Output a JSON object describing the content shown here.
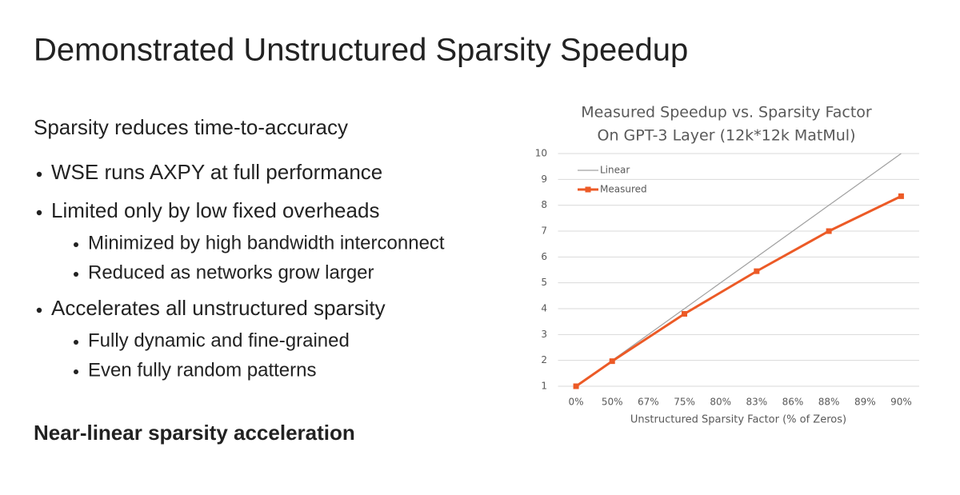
{
  "title": "Demonstrated Unstructured Sparsity Speedup",
  "intro": "Sparsity reduces time-to-accuracy",
  "bullets": [
    {
      "text": "WSE runs AXPY at full performance",
      "sub": []
    },
    {
      "text": "Limited only by low fixed overheads",
      "sub": [
        "Minimized by high bandwidth interconnect",
        "Reduced as networks grow larger"
      ]
    },
    {
      "text": "Accelerates all unstructured sparsity",
      "sub": [
        "Fully dynamic and fine-grained",
        "Even fully random patterns"
      ]
    }
  ],
  "conclusion": "Near-linear sparsity acceleration",
  "chart_data": {
    "type": "line",
    "title": [
      "Measured Speedup vs. Sparsity Factor",
      "On GPT-3 Layer (12k*12k MatMul)"
    ],
    "x_label": "Unstructured Sparsity Factor (% of Zeros)",
    "categories": [
      "0%",
      "50%",
      "67%",
      "75%",
      "80%",
      "83%",
      "86%",
      "88%",
      "89%",
      "90%"
    ],
    "ylim": [
      1,
      10
    ],
    "yticks": [
      1,
      2,
      3,
      4,
      5,
      6,
      7,
      8,
      9,
      10
    ],
    "grid": true,
    "legend": "top-left",
    "series": [
      {
        "name": "Linear",
        "color": "#a0a0a0",
        "markers": false,
        "x": [
          "0%",
          "50%",
          "67%",
          "75%",
          "80%",
          "83%",
          "86%",
          "88%",
          "89%",
          "90%"
        ],
        "values": [
          1,
          2,
          3,
          4,
          5,
          6,
          7,
          8,
          9,
          10
        ]
      },
      {
        "name": "Measured",
        "color": "#ec5a26",
        "markers": true,
        "x": [
          "0%",
          "50%",
          "75%",
          "83%",
          "88%",
          "90%"
        ],
        "values": [
          1,
          1.97,
          3.8,
          5.45,
          7.0,
          8.35
        ]
      }
    ]
  }
}
